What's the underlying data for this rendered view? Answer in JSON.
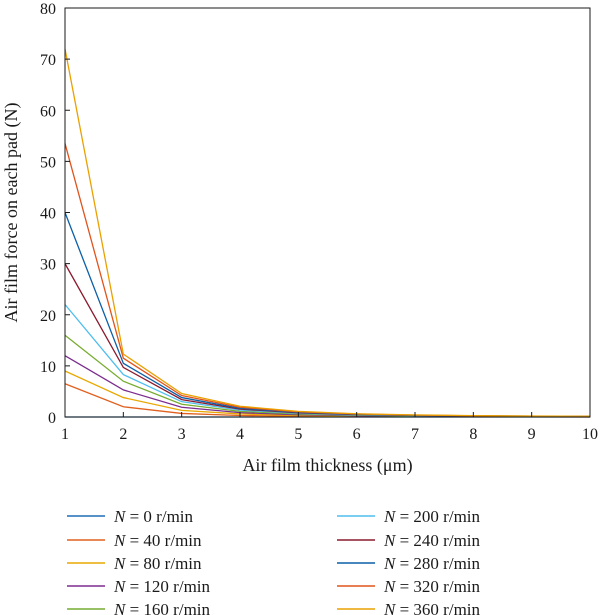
{
  "chart_data": {
    "type": "line",
    "xlabel": "Air film thickness (μm)",
    "ylabel": "Air film force on each pad (N)",
    "xlim": [
      1,
      10
    ],
    "ylim": [
      0,
      80
    ],
    "xticks": [
      "1",
      "2",
      "3",
      "4",
      "5",
      "6",
      "7",
      "8",
      "9",
      "10"
    ],
    "yticks": [
      "0",
      "10",
      "20",
      "30",
      "40",
      "50",
      "60",
      "70",
      "80"
    ],
    "legend_position": "bottom",
    "x": [
      1,
      2,
      3,
      4,
      5,
      6,
      7,
      8,
      9,
      10
    ],
    "series": [
      {
        "name": "N = 0 r/min",
        "color": "#1f6fb5",
        "values": [
          0,
          0,
          0,
          0,
          0,
          0,
          0,
          0,
          0,
          0
        ]
      },
      {
        "name": "N = 40 r/min",
        "color": "#e1601f",
        "values": [
          6.5,
          2,
          0.7,
          0.3,
          0.15,
          0.08,
          0.05,
          0.03,
          0.02,
          0.01
        ]
      },
      {
        "name": "N = 80 r/min",
        "color": "#e8a800",
        "values": [
          9,
          3.8,
          1.3,
          0.6,
          0.3,
          0.17,
          0.1,
          0.06,
          0.04,
          0.03
        ]
      },
      {
        "name": "N = 120 r/min",
        "color": "#7b2d8e",
        "values": [
          12,
          5.3,
          1.9,
          0.85,
          0.45,
          0.25,
          0.15,
          0.1,
          0.07,
          0.05
        ]
      },
      {
        "name": "N = 160 r/min",
        "color": "#77ac30",
        "values": [
          16,
          7,
          2.5,
          1.1,
          0.6,
          0.33,
          0.2,
          0.14,
          0.1,
          0.07
        ]
      },
      {
        "name": "N = 200 r/min",
        "color": "#4dbeee",
        "values": [
          22,
          8.3,
          3,
          1.35,
          0.72,
          0.4,
          0.25,
          0.17,
          0.12,
          0.09
        ]
      },
      {
        "name": "N = 240 r/min",
        "color": "#8b1a2e",
        "values": [
          30,
          9.7,
          3.4,
          1.55,
          0.82,
          0.47,
          0.29,
          0.2,
          0.14,
          0.1
        ]
      },
      {
        "name": "N = 280 r/min",
        "color": "#0c5fa8",
        "values": [
          40,
          10.5,
          3.8,
          1.7,
          0.9,
          0.52,
          0.32,
          0.22,
          0.16,
          0.12
        ]
      },
      {
        "name": "N = 320 r/min",
        "color": "#e0541c",
        "values": [
          53.5,
          11.5,
          4.2,
          1.9,
          1,
          0.58,
          0.36,
          0.24,
          0.17,
          0.13
        ]
      },
      {
        "name": "N = 360 r/min",
        "color": "#eaa000",
        "values": [
          72,
          12.3,
          4.6,
          2.1,
          1.1,
          0.63,
          0.4,
          0.27,
          0.19,
          0.14
        ]
      }
    ]
  }
}
